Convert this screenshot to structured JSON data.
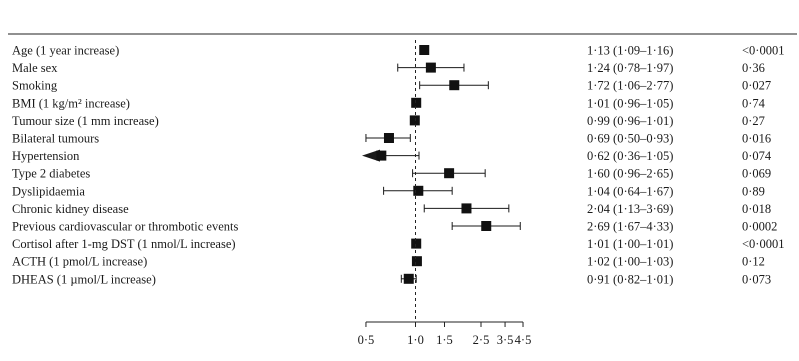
{
  "chart_data": {
    "type": "forest",
    "reference_value": 1,
    "x_scale": "log",
    "xlim": [
      0.5,
      4.5
    ],
    "x_ticks": [
      {
        "value": 0.5,
        "label": "0·5"
      },
      {
        "value": 1.0,
        "label": "1·0"
      },
      {
        "value": 1.5,
        "label": "1·5"
      },
      {
        "value": 2.5,
        "label": "2·5"
      },
      {
        "value": 3.5,
        "label": "3·5"
      },
      {
        "value": 4.5,
        "label": "4·5"
      }
    ],
    "rows": [
      {
        "label": "Age (1 year increase)",
        "estimate": 1.13,
        "lower": 1.09,
        "upper": 1.16,
        "ci_text": "1·13 (1·09–1·16)",
        "p": "<0·0001"
      },
      {
        "label": "Male sex",
        "estimate": 1.24,
        "lower": 0.78,
        "upper": 1.97,
        "ci_text": "1·24 (0·78–1·97)",
        "p": "0·36"
      },
      {
        "label": "Smoking",
        "estimate": 1.72,
        "lower": 1.06,
        "upper": 2.77,
        "ci_text": "1·72 (1·06–2·77)",
        "p": "0·027"
      },
      {
        "label": "BMI (1 kg/m² increase)",
        "estimate": 1.01,
        "lower": 0.96,
        "upper": 1.05,
        "ci_text": "1·01 (0·96–1·05)",
        "p": "0·74"
      },
      {
        "label": "Tumour size (1 mm increase)",
        "estimate": 0.99,
        "lower": 0.96,
        "upper": 1.01,
        "ci_text": "0·99 (0·96–1·01)",
        "p": "0·27"
      },
      {
        "label": "Bilateral tumours",
        "estimate": 0.69,
        "lower": 0.5,
        "upper": 0.93,
        "ci_text": "0·69 (0·50–0·93)",
        "p": "0·016"
      },
      {
        "label": "Hypertension",
        "estimate": 0.62,
        "lower": 0.36,
        "upper": 1.05,
        "ci_text": "0·62 (0·36–1·05)",
        "p": "0·074",
        "lower_truncated": true
      },
      {
        "label": "Type 2 diabetes",
        "estimate": 1.6,
        "lower": 0.96,
        "upper": 2.65,
        "ci_text": "1·60 (0·96–2·65)",
        "p": "0·069"
      },
      {
        "label": "Dyslipidaemia",
        "estimate": 1.04,
        "lower": 0.64,
        "upper": 1.67,
        "ci_text": "1·04 (0·64–1·67)",
        "p": "0·89"
      },
      {
        "label": "Chronic kidney disease",
        "estimate": 2.04,
        "lower": 1.13,
        "upper": 3.69,
        "ci_text": "2·04 (1·13–3·69)",
        "p": "0·018"
      },
      {
        "label": "Previous cardiovascular or thrombotic events",
        "estimate": 2.69,
        "lower": 1.67,
        "upper": 4.33,
        "ci_text": "2·69 (1·67–4·33)",
        "p": "0·0002"
      },
      {
        "label": "Cortisol after 1-mg DST (1 nmol/L increase)",
        "estimate": 1.01,
        "lower": 1.0,
        "upper": 1.01,
        "ci_text": "1·01 (1·00–1·01)",
        "p": "<0·0001"
      },
      {
        "label": "ACTH (1 pmol/L increase)",
        "estimate": 1.02,
        "lower": 1.0,
        "upper": 1.03,
        "ci_text": "1·02 (1·00–1·03)",
        "p": "0·12"
      },
      {
        "label": "DHEAS (1 µmol/L increase)",
        "estimate": 0.91,
        "lower": 0.82,
        "upper": 1.01,
        "ci_text": "0·91 (0·82–1·01)",
        "p": "0·073"
      }
    ]
  }
}
